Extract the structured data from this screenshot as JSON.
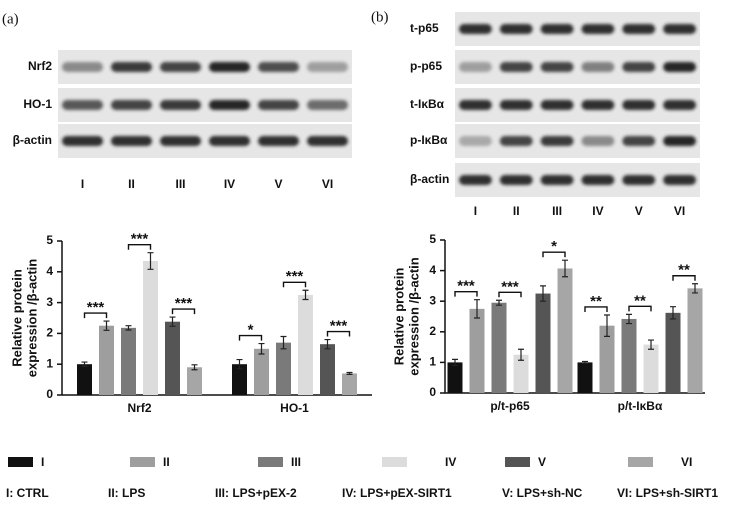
{
  "panels": [
    {
      "label": "(a)",
      "rows": [
        "Nrf2",
        "HO-1",
        "β-actin"
      ],
      "lanes": [
        "I",
        "II",
        "III",
        "IV",
        "V",
        "VI"
      ]
    },
    {
      "label": "(b)",
      "rows": [
        "t-p65",
        "p-p65",
        "t-IκBα",
        "p-IκBα",
        "β-actin"
      ],
      "lanes": [
        "I",
        "II",
        "III",
        "IV",
        "V",
        "VI"
      ]
    }
  ],
  "chart_data": [
    {
      "type": "bar",
      "ylabel": [
        "Relative protein",
        "expression /β-actin"
      ],
      "categories": [
        "Nrf2",
        "HO-1"
      ],
      "ylim": [
        0,
        5
      ],
      "yticks": [
        0,
        1,
        2,
        3,
        4,
        5
      ],
      "series": [
        {
          "name": "I",
          "color": "#111111",
          "values": [
            1.0,
            1.0
          ],
          "errors": [
            0.07,
            0.15
          ]
        },
        {
          "name": "II",
          "color": "#9e9e9e",
          "values": [
            2.25,
            1.5
          ],
          "errors": [
            0.15,
            0.17
          ]
        },
        {
          "name": "III",
          "color": "#7a7a7a",
          "values": [
            2.18,
            1.7
          ],
          "errors": [
            0.07,
            0.2
          ]
        },
        {
          "name": "IV",
          "color": "#dcdcdc",
          "values": [
            4.35,
            3.25
          ],
          "errors": [
            0.27,
            0.15
          ]
        },
        {
          "name": "V",
          "color": "#555555",
          "values": [
            2.38,
            1.65
          ],
          "errors": [
            0.15,
            0.15
          ]
        },
        {
          "name": "VI",
          "color": "#a6a6a6",
          "values": [
            0.9,
            0.7
          ],
          "errors": [
            0.08,
            0.03
          ]
        }
      ],
      "annotations": [
        {
          "text": "***",
          "category": "Nrf2",
          "from": "I",
          "to": "II"
        },
        {
          "text": "***",
          "category": "Nrf2",
          "from": "III",
          "to": "IV"
        },
        {
          "text": "***",
          "category": "Nrf2",
          "from": "V",
          "to": "VI"
        },
        {
          "text": "*",
          "category": "HO-1",
          "from": "I",
          "to": "II"
        },
        {
          "text": "***",
          "category": "HO-1",
          "from": "III",
          "to": "IV"
        },
        {
          "text": "***",
          "category": "HO-1",
          "from": "V",
          "to": "VI"
        }
      ]
    },
    {
      "type": "bar",
      "ylabel": [
        "Relative protein",
        "expression /β-actin"
      ],
      "categories": [
        "p/t-p65",
        "p/t-IκBα"
      ],
      "ylim": [
        0,
        5
      ],
      "yticks": [
        0,
        1,
        2,
        3,
        4,
        5
      ],
      "series": [
        {
          "name": "I",
          "color": "#111111",
          "values": [
            1.0,
            1.0
          ],
          "errors": [
            0.1,
            0.03
          ]
        },
        {
          "name": "II",
          "color": "#9e9e9e",
          "values": [
            2.75,
            2.2
          ],
          "errors": [
            0.3,
            0.35
          ]
        },
        {
          "name": "III",
          "color": "#7a7a7a",
          "values": [
            2.95,
            2.42
          ],
          "errors": [
            0.08,
            0.15
          ]
        },
        {
          "name": "IV",
          "color": "#dcdcdc",
          "values": [
            1.25,
            1.58
          ],
          "errors": [
            0.18,
            0.15
          ]
        },
        {
          "name": "V",
          "color": "#555555",
          "values": [
            3.25,
            2.62
          ],
          "errors": [
            0.25,
            0.2
          ]
        },
        {
          "name": "VI",
          "color": "#a6a6a6",
          "values": [
            4.07,
            3.42
          ],
          "errors": [
            0.27,
            0.15
          ]
        }
      ],
      "annotations": [
        {
          "text": "***",
          "category": "p/t-p65",
          "from": "I",
          "to": "II"
        },
        {
          "text": "***",
          "category": "p/t-p65",
          "from": "III",
          "to": "IV"
        },
        {
          "text": "*",
          "category": "p/t-p65",
          "from": "V",
          "to": "VI"
        },
        {
          "text": "**",
          "category": "p/t-IκBα",
          "from": "I",
          "to": "II"
        },
        {
          "text": "**",
          "category": "p/t-IκBα",
          "from": "III",
          "to": "IV"
        },
        {
          "text": "**",
          "category": "p/t-IκBα",
          "from": "V",
          "to": "VI"
        }
      ]
    }
  ],
  "footnote": [
    "I: CTRL",
    "II: LPS",
    "III: LPS+pEX-2",
    "IV: LPS+pEX-SIRT1",
    "V: LPS+sh-NC",
    "VI: LPS+sh-SIRT1"
  ]
}
